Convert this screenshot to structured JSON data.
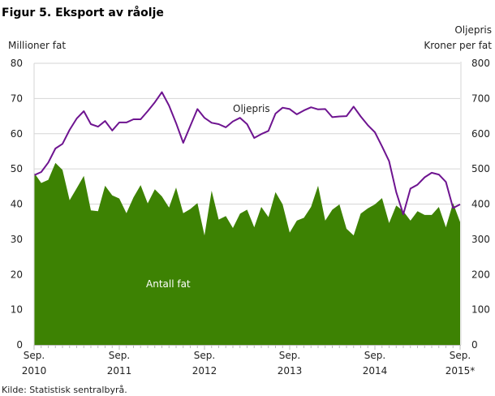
{
  "chart_data": {
    "type": "area+line",
    "title": "Figur 5. Eksport av råolje",
    "ylabel_left": "Millioner fat",
    "ylabel_right": [
      "Oljepris",
      "Kroner per fat"
    ],
    "ylim_left": [
      0,
      80
    ],
    "ylim_right": [
      0,
      800
    ],
    "yticks_left": [
      "0",
      "10",
      "20",
      "30",
      "40",
      "50",
      "60",
      "70",
      "80"
    ],
    "yticks_right": [
      "0",
      "100",
      "200",
      "300",
      "400",
      "500",
      "600",
      "700",
      "800"
    ],
    "xticks": [
      [
        "Sep.",
        "2010"
      ],
      [
        "Sep.",
        "2011"
      ],
      [
        "Sep.",
        "2012"
      ],
      [
        "Sep.",
        "2013"
      ],
      [
        "Sep.",
        "2014"
      ],
      [
        "Sep.",
        "2015*"
      ]
    ],
    "x_start": "Sep. 2010",
    "x_end": "Sep. 2015",
    "grid": true,
    "series": [
      {
        "name": "Antall fat",
        "axis": "left",
        "type": "area",
        "color": "#3d8203",
        "values": [
          48.9,
          46.0,
          46.9,
          51.7,
          49.7,
          41.1,
          44.5,
          48.0,
          38.2,
          38.0,
          45.2,
          42.5,
          41.6,
          37.4,
          41.9,
          45.4,
          40.2,
          44.2,
          42.2,
          39.0,
          44.7,
          37.4,
          38.6,
          40.3,
          31.1,
          43.8,
          35.6,
          36.6,
          33.2,
          37.3,
          38.4,
          33.4,
          39.2,
          36.3,
          43.4,
          39.9,
          31.9,
          35.3,
          36.1,
          39.2,
          45.2,
          35.3,
          38.4,
          39.9,
          33.0,
          31.1,
          37.3,
          38.8,
          39.9,
          41.7,
          34.6,
          39.6,
          38.0,
          35.3,
          38.0,
          36.9,
          36.9,
          39.2,
          33.4,
          40.3,
          34.9
        ]
      },
      {
        "name": "Oljepris",
        "axis": "right",
        "type": "line",
        "color": "#6e1490",
        "values": [
          482,
          491,
          518,
          558,
          571,
          611,
          643,
          664,
          627,
          620,
          636,
          609,
          632,
          632,
          641,
          641,
          664,
          689,
          718,
          680,
          630,
          574,
          622,
          670,
          645,
          631,
          627,
          618,
          635,
          645,
          627,
          588,
          599,
          608,
          657,
          674,
          670,
          655,
          666,
          675,
          669,
          670,
          647,
          649,
          650,
          677,
          649,
          624,
          604,
          564,
          522,
          434,
          371,
          444,
          455,
          476,
          489,
          484,
          463,
          389,
          399
        ]
      }
    ],
    "source": "Kilde: Statistisk sentralbyrå."
  }
}
